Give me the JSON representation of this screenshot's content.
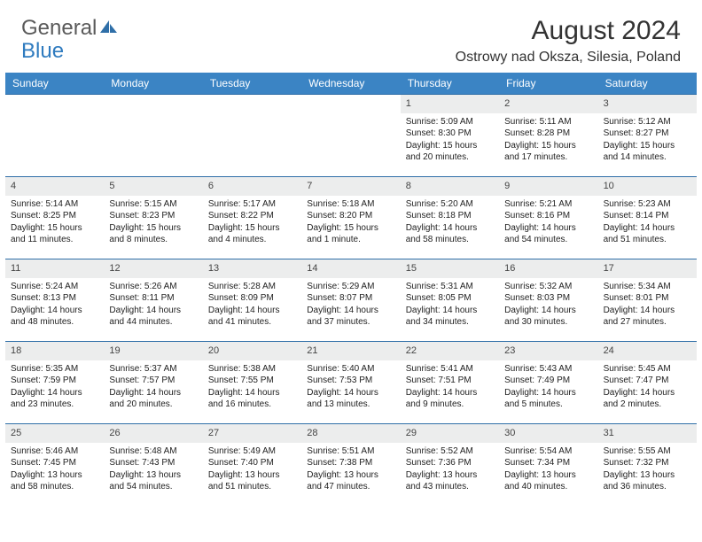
{
  "logo": {
    "text_general": "General",
    "text_blue": "Blue",
    "icon_color": "#2f6fa8"
  },
  "header": {
    "month_title": "August 2024",
    "location": "Ostrowy nad Oksza, Silesia, Poland"
  },
  "colors": {
    "header_bg": "#3b84c4",
    "header_text": "#ffffff",
    "daynum_bg": "#eceded",
    "week_border": "#2f6fa8",
    "text": "#222222"
  },
  "day_names": [
    "Sunday",
    "Monday",
    "Tuesday",
    "Wednesday",
    "Thursday",
    "Friday",
    "Saturday"
  ],
  "weeks": [
    [
      null,
      null,
      null,
      null,
      {
        "n": "1",
        "sr": "Sunrise: 5:09 AM",
        "ss": "Sunset: 8:30 PM",
        "dl1": "Daylight: 15 hours",
        "dl2": "and 20 minutes."
      },
      {
        "n": "2",
        "sr": "Sunrise: 5:11 AM",
        "ss": "Sunset: 8:28 PM",
        "dl1": "Daylight: 15 hours",
        "dl2": "and 17 minutes."
      },
      {
        "n": "3",
        "sr": "Sunrise: 5:12 AM",
        "ss": "Sunset: 8:27 PM",
        "dl1": "Daylight: 15 hours",
        "dl2": "and 14 minutes."
      }
    ],
    [
      {
        "n": "4",
        "sr": "Sunrise: 5:14 AM",
        "ss": "Sunset: 8:25 PM",
        "dl1": "Daylight: 15 hours",
        "dl2": "and 11 minutes."
      },
      {
        "n": "5",
        "sr": "Sunrise: 5:15 AM",
        "ss": "Sunset: 8:23 PM",
        "dl1": "Daylight: 15 hours",
        "dl2": "and 8 minutes."
      },
      {
        "n": "6",
        "sr": "Sunrise: 5:17 AM",
        "ss": "Sunset: 8:22 PM",
        "dl1": "Daylight: 15 hours",
        "dl2": "and 4 minutes."
      },
      {
        "n": "7",
        "sr": "Sunrise: 5:18 AM",
        "ss": "Sunset: 8:20 PM",
        "dl1": "Daylight: 15 hours",
        "dl2": "and 1 minute."
      },
      {
        "n": "8",
        "sr": "Sunrise: 5:20 AM",
        "ss": "Sunset: 8:18 PM",
        "dl1": "Daylight: 14 hours",
        "dl2": "and 58 minutes."
      },
      {
        "n": "9",
        "sr": "Sunrise: 5:21 AM",
        "ss": "Sunset: 8:16 PM",
        "dl1": "Daylight: 14 hours",
        "dl2": "and 54 minutes."
      },
      {
        "n": "10",
        "sr": "Sunrise: 5:23 AM",
        "ss": "Sunset: 8:14 PM",
        "dl1": "Daylight: 14 hours",
        "dl2": "and 51 minutes."
      }
    ],
    [
      {
        "n": "11",
        "sr": "Sunrise: 5:24 AM",
        "ss": "Sunset: 8:13 PM",
        "dl1": "Daylight: 14 hours",
        "dl2": "and 48 minutes."
      },
      {
        "n": "12",
        "sr": "Sunrise: 5:26 AM",
        "ss": "Sunset: 8:11 PM",
        "dl1": "Daylight: 14 hours",
        "dl2": "and 44 minutes."
      },
      {
        "n": "13",
        "sr": "Sunrise: 5:28 AM",
        "ss": "Sunset: 8:09 PM",
        "dl1": "Daylight: 14 hours",
        "dl2": "and 41 minutes."
      },
      {
        "n": "14",
        "sr": "Sunrise: 5:29 AM",
        "ss": "Sunset: 8:07 PM",
        "dl1": "Daylight: 14 hours",
        "dl2": "and 37 minutes."
      },
      {
        "n": "15",
        "sr": "Sunrise: 5:31 AM",
        "ss": "Sunset: 8:05 PM",
        "dl1": "Daylight: 14 hours",
        "dl2": "and 34 minutes."
      },
      {
        "n": "16",
        "sr": "Sunrise: 5:32 AM",
        "ss": "Sunset: 8:03 PM",
        "dl1": "Daylight: 14 hours",
        "dl2": "and 30 minutes."
      },
      {
        "n": "17",
        "sr": "Sunrise: 5:34 AM",
        "ss": "Sunset: 8:01 PM",
        "dl1": "Daylight: 14 hours",
        "dl2": "and 27 minutes."
      }
    ],
    [
      {
        "n": "18",
        "sr": "Sunrise: 5:35 AM",
        "ss": "Sunset: 7:59 PM",
        "dl1": "Daylight: 14 hours",
        "dl2": "and 23 minutes."
      },
      {
        "n": "19",
        "sr": "Sunrise: 5:37 AM",
        "ss": "Sunset: 7:57 PM",
        "dl1": "Daylight: 14 hours",
        "dl2": "and 20 minutes."
      },
      {
        "n": "20",
        "sr": "Sunrise: 5:38 AM",
        "ss": "Sunset: 7:55 PM",
        "dl1": "Daylight: 14 hours",
        "dl2": "and 16 minutes."
      },
      {
        "n": "21",
        "sr": "Sunrise: 5:40 AM",
        "ss": "Sunset: 7:53 PM",
        "dl1": "Daylight: 14 hours",
        "dl2": "and 13 minutes."
      },
      {
        "n": "22",
        "sr": "Sunrise: 5:41 AM",
        "ss": "Sunset: 7:51 PM",
        "dl1": "Daylight: 14 hours",
        "dl2": "and 9 minutes."
      },
      {
        "n": "23",
        "sr": "Sunrise: 5:43 AM",
        "ss": "Sunset: 7:49 PM",
        "dl1": "Daylight: 14 hours",
        "dl2": "and 5 minutes."
      },
      {
        "n": "24",
        "sr": "Sunrise: 5:45 AM",
        "ss": "Sunset: 7:47 PM",
        "dl1": "Daylight: 14 hours",
        "dl2": "and 2 minutes."
      }
    ],
    [
      {
        "n": "25",
        "sr": "Sunrise: 5:46 AM",
        "ss": "Sunset: 7:45 PM",
        "dl1": "Daylight: 13 hours",
        "dl2": "and 58 minutes."
      },
      {
        "n": "26",
        "sr": "Sunrise: 5:48 AM",
        "ss": "Sunset: 7:43 PM",
        "dl1": "Daylight: 13 hours",
        "dl2": "and 54 minutes."
      },
      {
        "n": "27",
        "sr": "Sunrise: 5:49 AM",
        "ss": "Sunset: 7:40 PM",
        "dl1": "Daylight: 13 hours",
        "dl2": "and 51 minutes."
      },
      {
        "n": "28",
        "sr": "Sunrise: 5:51 AM",
        "ss": "Sunset: 7:38 PM",
        "dl1": "Daylight: 13 hours",
        "dl2": "and 47 minutes."
      },
      {
        "n": "29",
        "sr": "Sunrise: 5:52 AM",
        "ss": "Sunset: 7:36 PM",
        "dl1": "Daylight: 13 hours",
        "dl2": "and 43 minutes."
      },
      {
        "n": "30",
        "sr": "Sunrise: 5:54 AM",
        "ss": "Sunset: 7:34 PM",
        "dl1": "Daylight: 13 hours",
        "dl2": "and 40 minutes."
      },
      {
        "n": "31",
        "sr": "Sunrise: 5:55 AM",
        "ss": "Sunset: 7:32 PM",
        "dl1": "Daylight: 13 hours",
        "dl2": "and 36 minutes."
      }
    ]
  ]
}
